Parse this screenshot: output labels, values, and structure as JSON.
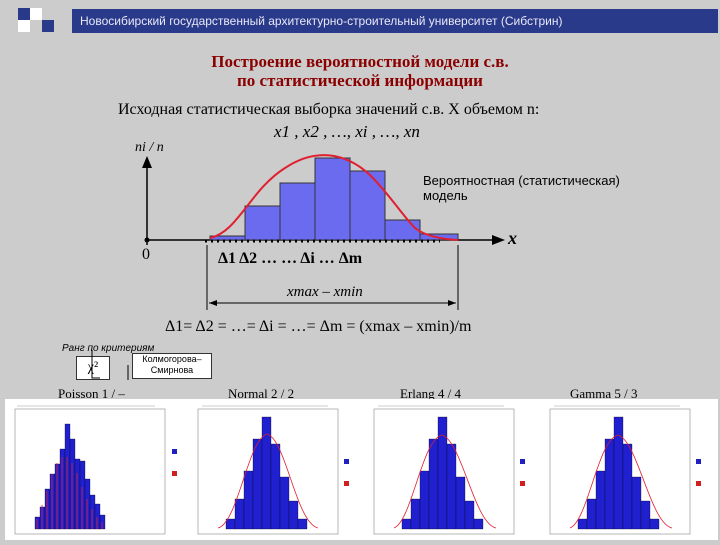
{
  "header": {
    "text": "Новосибирский государственный архитектурно-строительный университет (Сибстрин)"
  },
  "title": {
    "line1": "Построение вероятностной модели с.в.",
    "line2": "по статистической информации"
  },
  "intro": "Исходная статистическая выборка значений с.в. X объемом n:",
  "sequence": "x1 , x2 , …, xi , …, xn",
  "chart": {
    "y_label": "ni / n",
    "x_label": "x",
    "origin": "0",
    "model_label_1": "Вероятностная (статистическая)",
    "model_label_2": "модель",
    "range_label": "xmax – xmin",
    "interval_labels": "Δ1  Δ2  …  …  Δi  …  Δm"
  },
  "formula": "Δ1= Δ2 = …= Δi = …= Δm = (xmax – xmin)/m",
  "criteria": {
    "rank_label": "Ранг по критериям",
    "chi": "χ²",
    "kolm_1": "Колмогорова–",
    "kolm_2": "Смирнова"
  },
  "distributions": [
    {
      "name": "Poisson  1 / –"
    },
    {
      "name": "Normal  2 / 2"
    },
    {
      "name": "Erlang  4 / 4"
    },
    {
      "name": "Gamma  5 / 3"
    }
  ],
  "colors": {
    "header_bg": "#2a3a8a",
    "bar": "#6b6bf0",
    "curve": "#e02030",
    "title": "#8b0000",
    "legend_blue": "#2020c0",
    "legend_red": "#d02020"
  }
}
